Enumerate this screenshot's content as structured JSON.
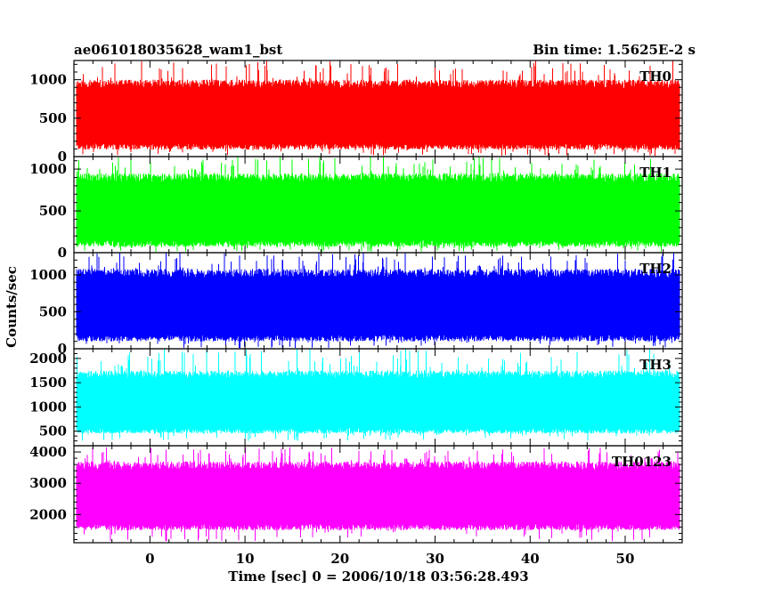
{
  "chart_data": {
    "type": "line",
    "title_left": "ae061018035628_wam1_bst",
    "title_right": "Bin time: 1.5625E-2 s",
    "xlabel": "Time [sec] 0 = 2006/10/18 03:56:28.493",
    "ylabel": "Counts/sec",
    "xlim": [
      -8,
      56
    ],
    "xticks": [
      0,
      10,
      20,
      30,
      40,
      50
    ],
    "x_data_range": [
      -7.8,
      55.8
    ],
    "panels": [
      {
        "name": "TH0",
        "color": "#ff0000",
        "ylim": [
          0,
          1250
        ],
        "yticks": [
          0,
          500,
          1000
        ],
        "typical": [
          90,
          1000
        ],
        "min": 10,
        "max": 1250
      },
      {
        "name": "TH1",
        "color": "#00ff00",
        "ylim": [
          0,
          1150
        ],
        "yticks": [
          0,
          500,
          1000
        ],
        "typical": [
          70,
          950
        ],
        "min": 10,
        "max": 1150
      },
      {
        "name": "TH2",
        "color": "#0000ff",
        "ylim": [
          0,
          1300
        ],
        "yticks": [
          0,
          500,
          1000
        ],
        "typical": [
          100,
          1080
        ],
        "min": 10,
        "max": 1300
      },
      {
        "name": "TH3",
        "color": "#00ffff",
        "ylim": [
          200,
          2200
        ],
        "yticks": [
          500,
          1000,
          1500,
          2000
        ],
        "typical": [
          450,
          1750
        ],
        "min": 300,
        "max": 2200
      },
      {
        "name": "TH0123",
        "color": "#ff00ff",
        "ylim": [
          1100,
          4200
        ],
        "yticks": [
          2000,
          3000,
          4000
        ],
        "typical": [
          1500,
          3700
        ],
        "min": 1150,
        "max": 4150
      }
    ]
  }
}
